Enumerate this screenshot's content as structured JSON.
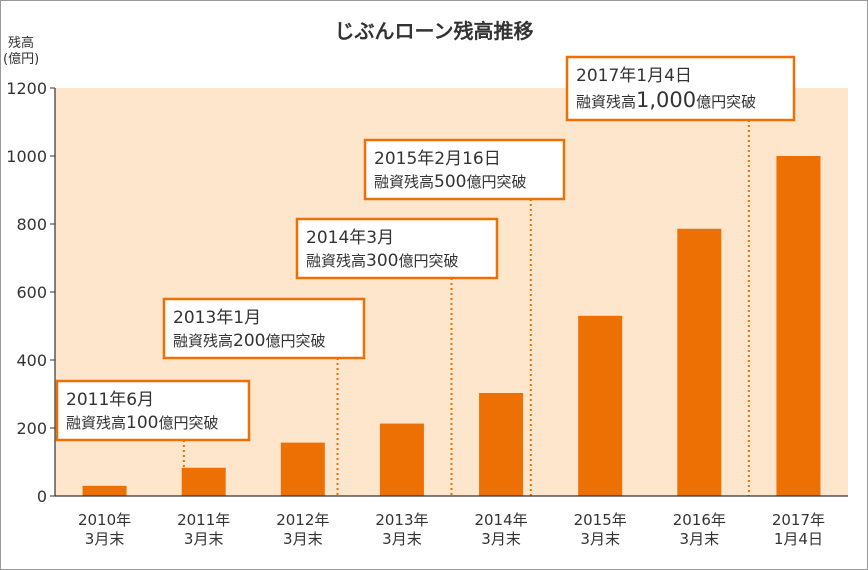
{
  "chart_data": {
    "type": "bar",
    "title": "じぶんローン残高推移",
    "ylabel_line1": "残高",
    "ylabel_line2": "(億円)",
    "xlabel": "",
    "ylim": [
      0,
      1200
    ],
    "yticks": [
      "0",
      "200",
      "400",
      "600",
      "800",
      "1000",
      "1200"
    ],
    "ytick_values": [
      0,
      200,
      400,
      600,
      800,
      1000,
      1200
    ],
    "grid": false,
    "categories": [
      {
        "line1": "2010年",
        "line2": "3月末"
      },
      {
        "line1": "2011年",
        "line2": "3月末"
      },
      {
        "line1": "2012年",
        "line2": "3月末"
      },
      {
        "line1": "2013年",
        "line2": "3月末"
      },
      {
        "line1": "2014年",
        "line2": "3月末"
      },
      {
        "line1": "2015年",
        "line2": "3月末"
      },
      {
        "line1": "2016年",
        "line2": "3月末"
      },
      {
        "line1": "2017年",
        "line2": "1月4日"
      }
    ],
    "values": [
      30,
      83,
      157,
      213,
      303,
      530,
      786,
      1000
    ],
    "annotations": [
      {
        "line1": "2011年6月",
        "line2_pre": "融資残高",
        "line2_num": "100",
        "line2_post": "億円突破",
        "marker_value": 1.3
      },
      {
        "line1": "2013年1月",
        "line2_pre": "融資残高",
        "line2_num": "200",
        "line2_post": "億円突破",
        "marker_value": 2.85
      },
      {
        "line1": "2014年3月",
        "line2_pre": "融資残高",
        "line2_num": "300",
        "line2_post": "億円突破",
        "marker_value": 4.0
      },
      {
        "line1": "2015年2月16日",
        "line2_pre": "融資残高",
        "line2_num": "500",
        "line2_post": "億円突破",
        "marker_value": 4.8
      },
      {
        "line1": "2017年1月4日",
        "line2_pre": "融資残高",
        "line2_num": "1,000",
        "line2_post": "億円突破",
        "marker_value": 7.0
      }
    ],
    "colors": {
      "bar": "#ec7004",
      "plot_bg": "#fde6cc",
      "callout_border": "#ec7004",
      "axis": "#333333",
      "text": "#333333"
    }
  }
}
